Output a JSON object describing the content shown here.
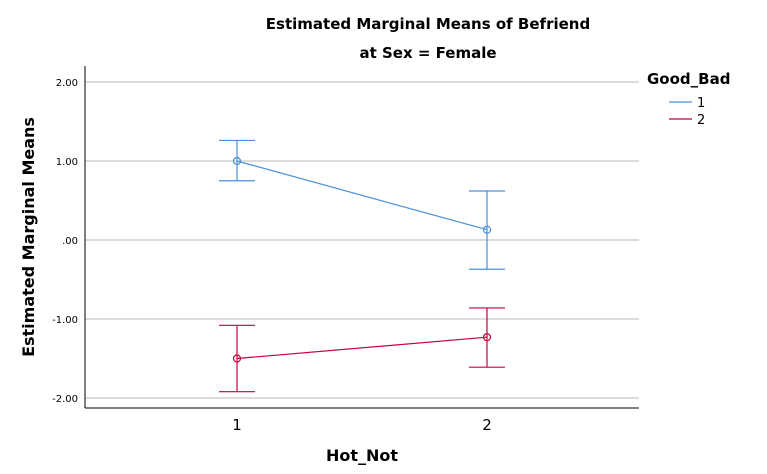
{
  "chart_data": {
    "type": "line",
    "title": "Estimated Marginal Means of Befriend",
    "subtitle": "at Sex = Female",
    "xlabel": "Hot_Not",
    "ylabel": "Estimated Marginal Means",
    "categories": [
      "1",
      "2"
    ],
    "ylim": [
      -2.1,
      2.2
    ],
    "yticks": [
      2.0,
      1.0,
      0.0,
      -1.0,
      -2.0
    ],
    "ytick_labels": [
      "2.00",
      "1.00",
      ".00",
      "-1.00",
      "-2.00"
    ],
    "grid": true,
    "legend": {
      "title": "Good_Bad",
      "position": "top-right"
    },
    "series": [
      {
        "name": "1",
        "color": "#4a90d9",
        "values": [
          1.0,
          0.13
        ],
        "lower": [
          0.75,
          -0.37
        ],
        "upper": [
          1.26,
          0.62
        ]
      },
      {
        "name": "2",
        "color": "#c8003c",
        "values": [
          -1.5,
          -1.23
        ],
        "lower": [
          -1.92,
          -1.61
        ],
        "upper": [
          -1.08,
          -0.86
        ]
      }
    ]
  }
}
